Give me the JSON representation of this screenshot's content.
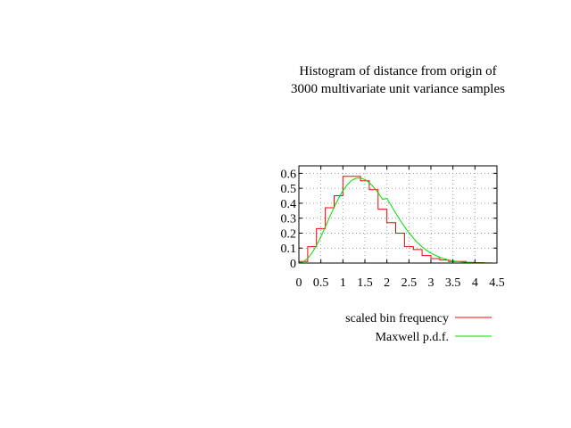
{
  "chart_data": {
    "type": "line",
    "title": [
      "Histogram of distance from origin of",
      "3000 multivariate unit variance samples"
    ],
    "xlim": [
      0,
      4.5
    ],
    "ylim": [
      0,
      0.65
    ],
    "x_ticks": [
      "0",
      "0.5",
      "1",
      "1.5",
      "2",
      "2.5",
      "3",
      "3.5",
      "4",
      "4.5"
    ],
    "x_tick_values": [
      0,
      0.5,
      1,
      1.5,
      2,
      2.5,
      3,
      3.5,
      4,
      4.5
    ],
    "y_ticks": [
      "0",
      "0.1",
      "0.2",
      "0.3",
      "0.4",
      "0.5",
      "0.6"
    ],
    "y_tick_values": [
      0,
      0.1,
      0.2,
      0.3,
      0.4,
      0.5,
      0.6
    ],
    "grid": true,
    "legend_position": "bottom-right",
    "series": [
      {
        "name": "scaled bin frequency",
        "color": "#ff0000",
        "style": "steps",
        "bin_edges": [
          0,
          0.2,
          0.4,
          0.6,
          0.8,
          1.0,
          1.2,
          1.4,
          1.6,
          1.8,
          2.0,
          2.2,
          2.4,
          2.6,
          2.8,
          3.0,
          3.2,
          3.4,
          3.6,
          3.8,
          4.0,
          4.2,
          4.4
        ],
        "values": [
          0.01,
          0.11,
          0.23,
          0.37,
          0.45,
          0.58,
          0.58,
          0.55,
          0.49,
          0.36,
          0.27,
          0.2,
          0.11,
          0.09,
          0.05,
          0.03,
          0.02,
          0.01,
          0.01,
          0.005,
          0.003,
          0
        ]
      },
      {
        "name": "Maxwell p.d.f.",
        "color": "#00dd00",
        "style": "line",
        "x": [
          0,
          0.1,
          0.2,
          0.3,
          0.4,
          0.5,
          0.6,
          0.7,
          0.8,
          0.9,
          1.0,
          1.1,
          1.2,
          1.3,
          1.4,
          1.5,
          1.6,
          1.7,
          1.8,
          1.9,
          2.0,
          2.1,
          2.2,
          2.3,
          2.4,
          2.5,
          2.6,
          2.7,
          2.8,
          2.9,
          3.0,
          3.2,
          3.4,
          3.6,
          3.8,
          4.0,
          4.2,
          4.4
        ],
        "values": [
          0,
          0.008,
          0.031,
          0.068,
          0.117,
          0.176,
          0.241,
          0.308,
          0.373,
          0.432,
          0.484,
          0.524,
          0.553,
          0.567,
          0.569,
          0.559,
          0.537,
          0.507,
          0.47,
          0.427,
          0.432,
          0.383,
          0.334,
          0.287,
          0.243,
          0.203,
          0.167,
          0.135,
          0.108,
          0.085,
          0.066,
          0.038,
          0.02,
          0.01,
          0.005,
          0.002,
          0.001,
          0.0003
        ]
      }
    ]
  }
}
